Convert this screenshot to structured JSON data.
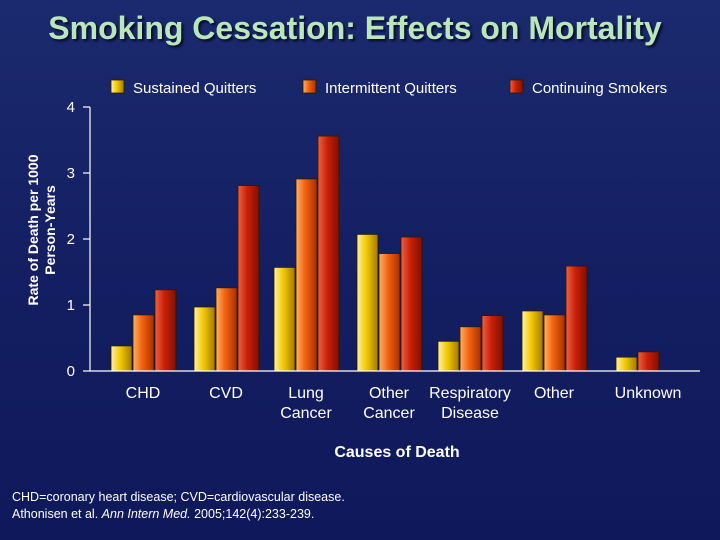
{
  "title": "Smoking Cessation: Effects on Mortality",
  "chart_data": {
    "type": "bar",
    "title": "Smoking Cessation: Effects on Mortality",
    "xlabel": "Causes of Death",
    "ylabel": [
      "Rate of Death per 1000",
      "Person-Years"
    ],
    "ylim": [
      0,
      4
    ],
    "yticks": [
      0,
      1,
      2,
      3,
      4
    ],
    "grid": false,
    "legend_position": "top",
    "categories": [
      [
        "CHD"
      ],
      [
        "CVD"
      ],
      [
        "Lung",
        "Cancer"
      ],
      [
        "Other",
        "Cancer"
      ],
      [
        "Respiratory",
        "Disease"
      ],
      [
        "Other"
      ],
      [
        "Unknown"
      ]
    ],
    "series": [
      {
        "name": "Sustained Quitters",
        "color": "#f2c800",
        "values": [
          0.38,
          0.97,
          1.57,
          2.07,
          0.45,
          0.91,
          0.21
        ]
      },
      {
        "name": "Intermittent Quitters",
        "color": "#f06010",
        "values": [
          0.85,
          1.26,
          2.91,
          1.78,
          0.67,
          0.85,
          null
        ]
      },
      {
        "name": "Continuing Smokers",
        "color": "#c82008",
        "values": [
          1.23,
          2.81,
          3.56,
          2.03,
          0.84,
          1.59,
          0.29
        ]
      }
    ]
  },
  "footnotes": {
    "line1": "CHD=coronary heart disease; CVD=cardiovascular disease.",
    "line2_authors": "Athonisen et al.",
    "line2_journal": "Ann Intern Med.",
    "line2_citation": "2005;142(4):233-239."
  }
}
